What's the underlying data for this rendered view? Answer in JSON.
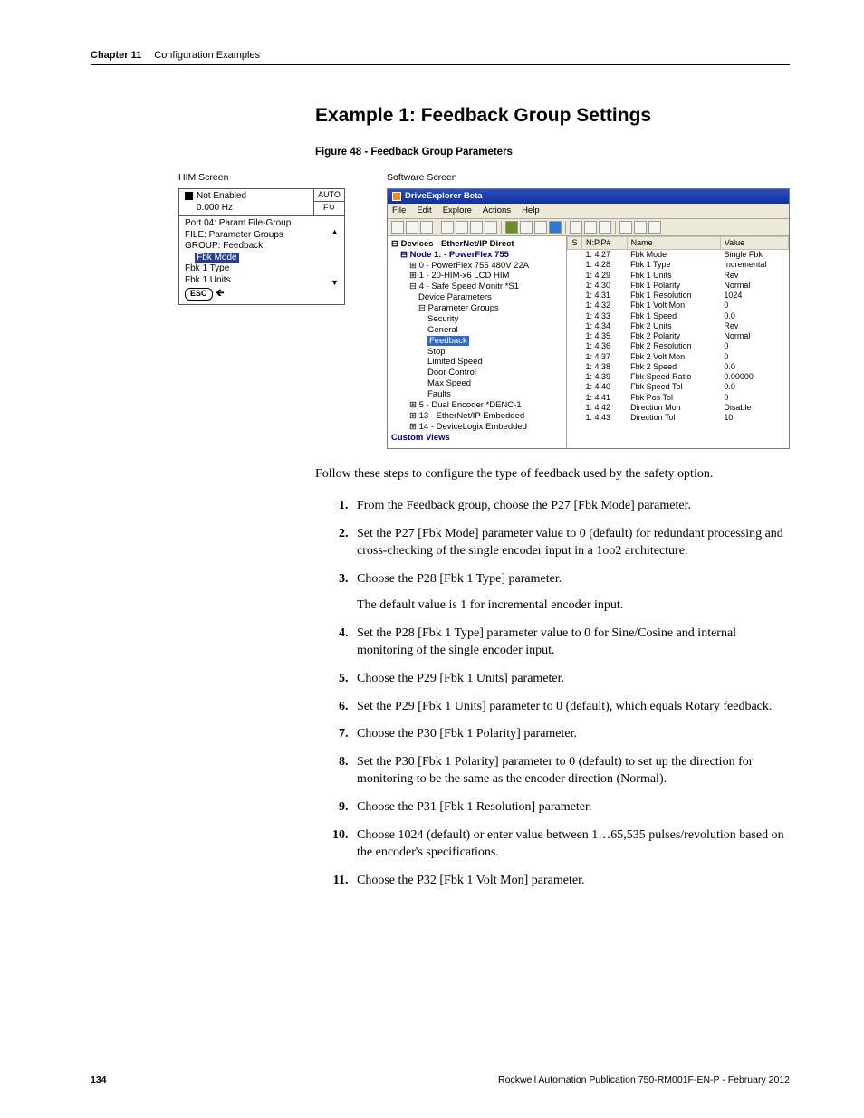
{
  "header": {
    "chapter": "Chapter 11",
    "title": "Configuration Examples"
  },
  "h1": "Example 1: Feedback Group Settings",
  "figcap": "Figure 48 - Feedback Group Parameters",
  "him_label": "HIM Screen",
  "soft_label": "Software Screen",
  "him": {
    "top_l1": "Not Enabled",
    "top_l2": "0.000 Hz",
    "top_r1": "AUTO",
    "top_r2": "F↻",
    "b1": "Port 04:   Param File-Group",
    "b2": "FILE:  Parameter Groups",
    "b3": "  GROUP:  Feedback",
    "sel": "Fbk Mode",
    "b5": "    Fbk 1 Type",
    "b6": "    Fbk 1 Units",
    "esc": "ESC"
  },
  "soft": {
    "title": "DriveExplorer Beta",
    "menu": [
      "File",
      "Edit",
      "Explore",
      "Actions",
      "Help"
    ],
    "tree": {
      "t0": "Devices - EtherNet/IP Direct",
      "t1": "Node 1: - PowerFlex 755",
      "t2a": "0  - PowerFlex 755 480V  22A",
      "t2b": "1  - 20-HIM-x6 LCD HIM",
      "t2c": "4  - Safe Speed Monitr *S1",
      "t3a": "Device Parameters",
      "t3b": "Parameter Groups",
      "t4a": "Security",
      "t4b": "General",
      "t4c": "Feedback",
      "t4d": "Stop",
      "t4e": "Limited Speed",
      "t4f": "Door Control",
      "t4g": "Max Speed",
      "t4h": "Faults",
      "t2d": "5  - Dual Encoder *DENC-1",
      "t2e": "13  - EtherNet/IP Embedded",
      "t2f": "14  - DeviceLogix Embedded",
      "cv": "Custom Views"
    },
    "cols": {
      "s": "S",
      "npp": "N:P.P#",
      "name": "Name",
      "val": "Value"
    },
    "rows": [
      {
        "n": "1: 4.27",
        "name": "Fbk Mode",
        "v": "Single Fbk"
      },
      {
        "n": "1: 4.28",
        "name": "Fbk 1 Type",
        "v": "Incremental"
      },
      {
        "n": "1: 4.29",
        "name": "Fbk 1 Units",
        "v": "Rev"
      },
      {
        "n": "1: 4.30",
        "name": "Fbk 1 Polarity",
        "v": "Normal"
      },
      {
        "n": "1: 4.31",
        "name": "Fbk 1 Resolution",
        "v": "1024"
      },
      {
        "n": "1: 4.32",
        "name": "Fbk 1 Volt Mon",
        "v": "0"
      },
      {
        "n": "1: 4.33",
        "name": "Fbk 1 Speed",
        "v": "0.0"
      },
      {
        "n": "1: 4.34",
        "name": "Fbk 2 Units",
        "v": "Rev"
      },
      {
        "n": "1: 4.35",
        "name": "Fbk 2 Polarity",
        "v": "Normal"
      },
      {
        "n": "1: 4.36",
        "name": "Fbk 2 Resolution",
        "v": "0"
      },
      {
        "n": "1: 4.37",
        "name": "Fbk 2 Volt Mon",
        "v": "0"
      },
      {
        "n": "1: 4.38",
        "name": "Fbk 2 Speed",
        "v": "0.0"
      },
      {
        "n": "1: 4.39",
        "name": "Fbk Speed Ratio",
        "v": "0.00000"
      },
      {
        "n": "1: 4.40",
        "name": "Fbk Speed Tol",
        "v": "0.0"
      },
      {
        "n": "1: 4.41",
        "name": "Fbk Pos Tol",
        "v": "0"
      },
      {
        "n": "1: 4.42",
        "name": "Direction Mon",
        "v": "Disable"
      },
      {
        "n": "1: 4.43",
        "name": "Direction Tol",
        "v": "10"
      }
    ]
  },
  "intro": "Follow these steps to configure the type of feedback used by the safety option.",
  "steps": [
    "From the Feedback group, choose the P27 [Fbk Mode] parameter.",
    "Set the P27 [Fbk Mode] parameter value to 0 (default) for redundant processing and cross-checking of the single encoder input in a 1oo2 architecture.",
    "Choose the P28 [Fbk 1 Type] parameter.",
    "Set the P28 [Fbk 1 Type] parameter value to 0 for Sine/Cosine and internal monitoring of the single encoder input.",
    "Choose the P29 [Fbk 1 Units] parameter.",
    "Set the P29 [Fbk 1 Units] parameter to 0 (default), which equals Rotary feedback.",
    "Choose the P30 [Fbk 1 Polarity] parameter.",
    "Set the P30 [Fbk 1 Polarity] parameter to 0 (default) to set up the direction for monitoring to be the same as the encoder direction (Normal).",
    "Choose the P31 [Fbk 1 Resolution] parameter.",
    "Choose 1024 (default) or enter value between 1…65,535 pulses/revolution based on the encoder's specifications.",
    "Choose the P32 [Fbk 1 Volt Mon] parameter."
  ],
  "step3_note": "The default value is 1 for incremental encoder input.",
  "footer": {
    "page": "134",
    "pub": "Rockwell Automation Publication 750-RM001F-EN-P - February 2012"
  }
}
